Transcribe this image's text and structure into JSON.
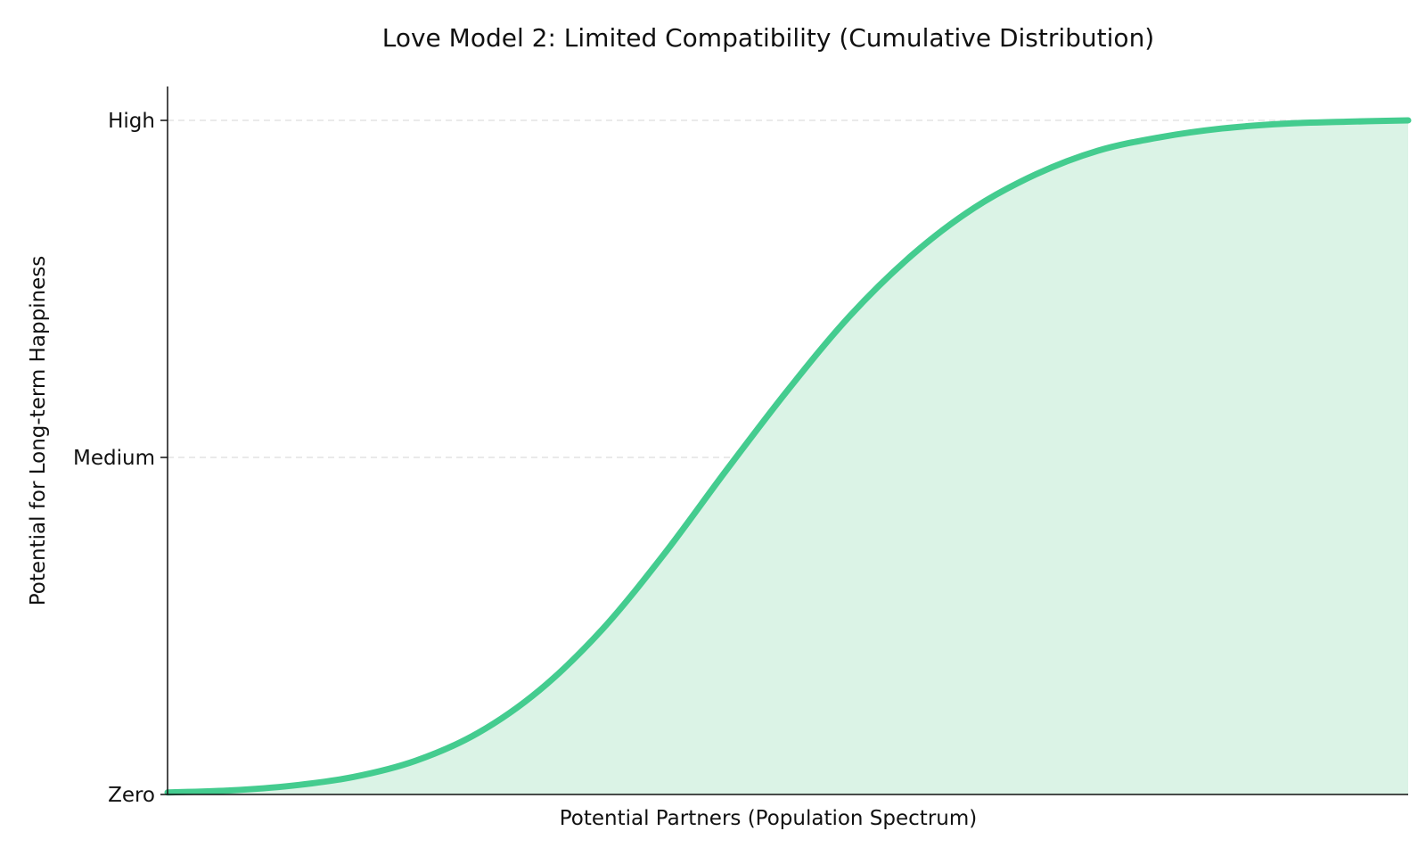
{
  "chart_data": {
    "type": "area",
    "title": "Love Model 2: Limited Compatibility (Cumulative Distribution)",
    "xlabel": "Potential Partners (Population Spectrum)",
    "ylabel": "Potential for Long-term Happiness",
    "y_ticks": [
      {
        "value": 0,
        "label": "Zero"
      },
      {
        "value": 0.5,
        "label": "Medium"
      },
      {
        "value": 1,
        "label": "High"
      }
    ],
    "xlim": [
      0,
      1
    ],
    "ylim": [
      0,
      1.05
    ],
    "grid": "horizontal-dashed",
    "series": [
      {
        "x": [
          0,
          0.05,
          0.1,
          0.15,
          0.2,
          0.25,
          0.3,
          0.35,
          0.4,
          0.45,
          0.5,
          0.55,
          0.6,
          0.65,
          0.7,
          0.75,
          0.8,
          0.85,
          0.9,
          0.95,
          1
        ],
        "values": [
          0.003,
          0.006,
          0.013,
          0.026,
          0.05,
          0.091,
          0.155,
          0.244,
          0.356,
          0.48,
          0.6,
          0.71,
          0.8,
          0.87,
          0.92,
          0.955,
          0.975,
          0.988,
          0.995,
          0.998,
          1.0
        ]
      }
    ],
    "colors": {
      "line": "#44cc8f",
      "fill": "#dbf3e6",
      "grid": "#e4e4e4"
    }
  }
}
